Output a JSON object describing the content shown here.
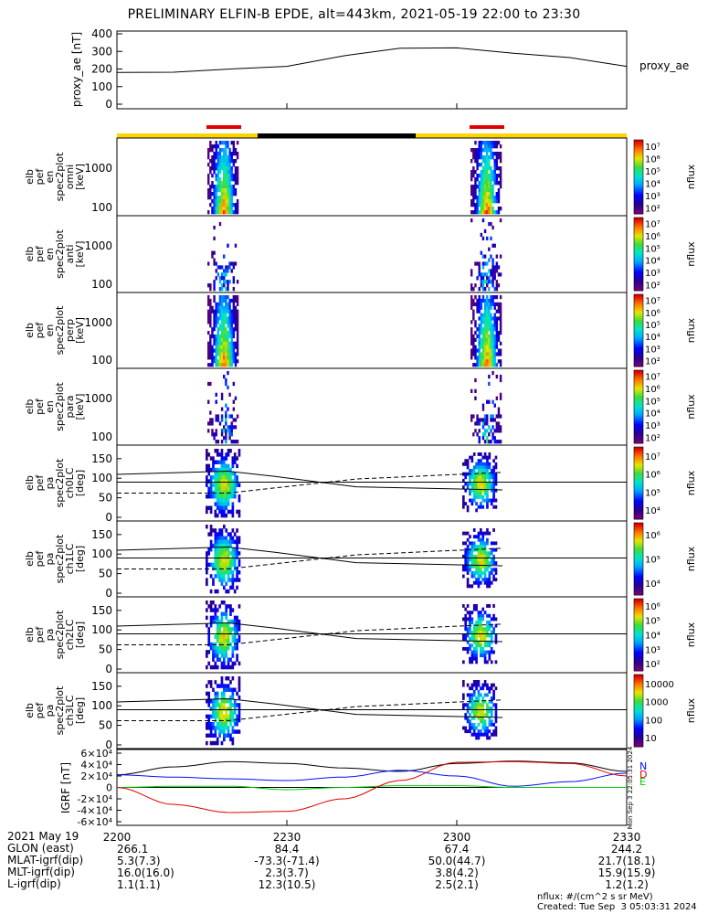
{
  "title": "PRELIMINARY ELFIN-B EPDE, alt=443km, 2021-05-19 22:00 to 23:30",
  "colors": {
    "bar_yellow": "#ffd400",
    "bar_black": "#000000",
    "bar_red": "#e00000",
    "line": "#000000"
  },
  "chart_data": [
    {
      "type": "line",
      "name": "proxy_ae",
      "ylabel": "proxy_ae [nT]",
      "legend": "proxy_ae",
      "ylim": [
        0,
        400
      ],
      "yticks": [
        "0",
        "100",
        "200",
        "300",
        "400"
      ],
      "x": [
        0,
        10,
        20,
        30,
        40,
        50,
        60,
        70,
        80,
        90
      ],
      "values": [
        180,
        182,
        200,
        215,
        275,
        318,
        320,
        290,
        265,
        215
      ]
    },
    {
      "type": "heatmap",
      "name": "energy-spectra",
      "panels": [
        {
          "id": "en-omni",
          "ylabel": "elb pef en spec2plot omni [keV]",
          "yticks": [
            "100",
            "1000"
          ]
        },
        {
          "id": "en-anti",
          "ylabel": "elb pef en spec2plot anti [keV]",
          "yticks": [
            "100",
            "1000"
          ]
        },
        {
          "id": "en-perp",
          "ylabel": "elb pef en spec2plot perp [keV]",
          "yticks": [
            "100",
            "1000"
          ]
        },
        {
          "id": "en-para",
          "ylabel": "elb pef en spec2plot para [keV]",
          "yticks": [
            "100",
            "1000"
          ]
        }
      ],
      "colorbar": {
        "label": "nflux",
        "ticks": [
          "10²",
          "10³",
          "10⁴",
          "10⁵",
          "10⁶",
          "10⁷"
        ]
      }
    },
    {
      "type": "heatmap",
      "name": "pitch-angle-spectra",
      "panels": [
        {
          "id": "pa-ch0",
          "ylabel": "elb pef pa spec2plot ch0LC [deg]",
          "yticks": [
            "0",
            "50",
            "100",
            "150"
          ],
          "colorbar": [
            "10⁴",
            "10⁵",
            "10⁶",
            "10⁷"
          ]
        },
        {
          "id": "pa-ch1",
          "ylabel": "elb pef pa spec2plot ch1LC [deg]",
          "yticks": [
            "0",
            "50",
            "100",
            "150"
          ],
          "colorbar": [
            "10⁴",
            "10⁵",
            "10⁶"
          ]
        },
        {
          "id": "pa-ch2",
          "ylabel": "elb pef pa spec2plot ch2LC [deg]",
          "yticks": [
            "0",
            "50",
            "100",
            "150"
          ],
          "colorbar": [
            "10²",
            "10³",
            "10⁴",
            "10⁵",
            "10⁶"
          ]
        },
        {
          "id": "pa-ch3",
          "ylabel": "elb pef pa spec2plot ch3LC [deg]",
          "yticks": [
            "0",
            "50",
            "100",
            "150"
          ],
          "colorbar": [
            "10",
            "100",
            "1000",
            "10000"
          ]
        }
      ],
      "colorbar_label": "nflux"
    },
    {
      "type": "line",
      "name": "IGRF",
      "ylabel": "IGRF [nT]",
      "ylim": [
        -60000,
        60000
      ],
      "yticks": [
        "-6×10⁴",
        "-4×10⁴",
        "-2×10⁴",
        "0",
        "2×10⁴",
        "4×10⁴",
        "6×10⁴"
      ],
      "legend": [
        "N",
        "E",
        "D"
      ],
      "stamp": "Mon Sep 3 22:05:31 2024",
      "x": [
        0,
        10,
        20,
        30,
        40,
        50,
        60,
        70,
        80,
        90
      ],
      "series": [
        {
          "name": "total",
          "values": [
            22000,
            36000,
            45000,
            42000,
            34000,
            28000,
            42000,
            46000,
            43000,
            28000
          ]
        },
        {
          "name": "N",
          "values": [
            22000,
            18000,
            15000,
            12000,
            18000,
            30000,
            20000,
            2000,
            10000,
            25000
          ]
        },
        {
          "name": "E",
          "values": [
            0,
            2000,
            2000,
            -4000,
            0,
            3000,
            3000,
            0,
            0,
            0
          ]
        },
        {
          "name": "D",
          "values": [
            0,
            -30000,
            -44000,
            -42000,
            -20000,
            12000,
            44000,
            45000,
            42000,
            20000
          ]
        }
      ]
    }
  ],
  "xaxis": {
    "date_label": "2021 May 19",
    "ticks": [
      "2200",
      "2230",
      "2300",
      "2330"
    ]
  },
  "annotations": {
    "rows": [
      {
        "label": "GLON (east)",
        "values": [
          "266.1",
          "84.4",
          "67.4",
          "244.2"
        ]
      },
      {
        "label": "MLAT-igrf(dip)",
        "values": [
          "5.3(7.3)",
          "-73.3(-71.4)",
          "50.0(44.7)",
          "21.7(18.1)"
        ]
      },
      {
        "label": "MLT-igrf(dip)",
        "values": [
          "16.0(16.0)",
          "2.3(3.7)",
          "3.8(4.2)",
          "15.9(15.9)"
        ]
      },
      {
        "label": "L-igrf(dip)",
        "values": [
          "1.1(1.1)",
          "12.3(10.5)",
          "2.5(2.1)",
          "1.2(1.2)"
        ]
      }
    ]
  },
  "footer": {
    "units": "nflux: #/(cm^2 s sr MeV)",
    "created": "Created: Tue Sep  3 05:03:31 2024"
  }
}
